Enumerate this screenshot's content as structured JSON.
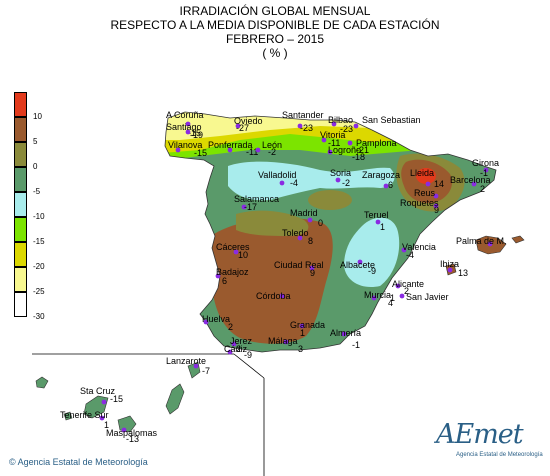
{
  "title": {
    "line1": "IRRADIACIÓN GLOBAL MENSUAL",
    "line2": "RESPECTO A LA MEDIA DISPONIBLE DE CADA ESTACIÓN",
    "line3": "FEBRERO – 2015",
    "line4": "( % )"
  },
  "legend": {
    "ticks": [
      "10",
      "5",
      "0",
      "-5",
      "-10",
      "-15",
      "-20",
      "-25",
      "-30"
    ],
    "colors": [
      "#e23a1c",
      "#9a5a2e",
      "#8a8a3a",
      "#5a9a6a",
      "#a8ecec",
      "#7ce400",
      "#dcd800",
      "#f8f890",
      "#ffffff"
    ]
  },
  "stations": [
    {
      "name": "A Coruña",
      "value": "-15"
    },
    {
      "name": "Santiago",
      "value": "-19"
    },
    {
      "name": "Oviedo",
      "value": "-27"
    },
    {
      "name": "Santander",
      "value": "-23"
    },
    {
      "name": "Bilbao",
      "value": ""
    },
    {
      "name": "San Sebastian",
      "value": "-23"
    },
    {
      "name": "Vitoria",
      "value": "-11"
    },
    {
      "name": "Pamplona",
      "value": "-21"
    },
    {
      "name": "Vilanova",
      "value": "-15"
    },
    {
      "name": "Ponferrada",
      "value": "-11"
    },
    {
      "name": "León",
      "value": "-2"
    },
    {
      "name": "Logroño",
      "value": "-18"
    },
    {
      "name": "Girona",
      "value": "-1"
    },
    {
      "name": "Valladolid",
      "value": "-4"
    },
    {
      "name": "Soria",
      "value": "-2"
    },
    {
      "name": "Zaragoza",
      "value": "6"
    },
    {
      "name": "Lleida",
      "value": "14"
    },
    {
      "name": "Barcelona",
      "value": "2"
    },
    {
      "name": "Reus",
      "value": ""
    },
    {
      "name": "Roquetes",
      "value": "9"
    },
    {
      "name": "Salamanca",
      "value": "-17"
    },
    {
      "name": "Madrid",
      "value": "0"
    },
    {
      "name": "Toledo",
      "value": "8"
    },
    {
      "name": "Teruel",
      "value": "1"
    },
    {
      "name": "Valencia",
      "value": "-4"
    },
    {
      "name": "Palma de M.",
      "value": ""
    },
    {
      "name": "Cáceres",
      "value": "10"
    },
    {
      "name": "Ciudad Real",
      "value": "9"
    },
    {
      "name": "Albacete",
      "value": "-9"
    },
    {
      "name": "Ibiza",
      "value": "13"
    },
    {
      "name": "Badajoz",
      "value": "6"
    },
    {
      "name": "Alicante",
      "value": "2"
    },
    {
      "name": "Murcia",
      "value": "4"
    },
    {
      "name": "San Javier",
      "value": "1"
    },
    {
      "name": "Córdoba",
      "value": ""
    },
    {
      "name": "Huelva",
      "value": "2"
    },
    {
      "name": "Granada",
      "value": "1"
    },
    {
      "name": "Almería",
      "value": "-1"
    },
    {
      "name": "Jerez",
      "value": "2"
    },
    {
      "name": "Cádiz",
      "value": "-9"
    },
    {
      "name": "Málaga",
      "value": "3"
    },
    {
      "name": "Lanzarote",
      "value": "-7"
    },
    {
      "name": "Sta Cruz",
      "value": "-15"
    },
    {
      "name": "Tenerife Sur",
      "value": "1"
    },
    {
      "name": "Maspalomas",
      "value": "-13"
    }
  ],
  "footer": {
    "credit": "© Agencia Estatal de Meteorología",
    "logo_word": "AEmet",
    "logo_sub": "Agencia Estatal de Meteorología"
  }
}
